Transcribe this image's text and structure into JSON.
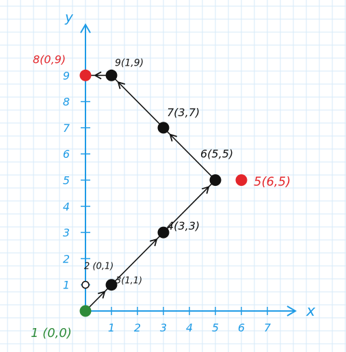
{
  "axes": {
    "x_label": "x",
    "y_label": "y",
    "x_ticks": [
      "1",
      "2",
      "3",
      "4",
      "5",
      "6",
      "7"
    ],
    "y_ticks": [
      "1",
      "2",
      "3",
      "4",
      "5",
      "6",
      "7",
      "8",
      "9"
    ]
  },
  "points": [
    {
      "id": "p1",
      "label": "1 (0,0)",
      "x": 0,
      "y": 0,
      "color": "#2e8b3a",
      "label_color": "#2e8b3a"
    },
    {
      "id": "p2",
      "label": "2 (0,1)",
      "x": 0,
      "y": 1,
      "color": "#ffffff",
      "label_color": "#111111"
    },
    {
      "id": "p3",
      "label": "3(1,1)",
      "x": 1,
      "y": 1,
      "color": "#111111",
      "label_color": "#111111"
    },
    {
      "id": "p4",
      "label": "4(3,3)",
      "x": 3,
      "y": 3,
      "color": "#111111",
      "label_color": "#111111"
    },
    {
      "id": "p5",
      "label": "5(6,5)",
      "x": 6,
      "y": 5,
      "color": "#e3262b",
      "label_color": "#e3262b"
    },
    {
      "id": "p6",
      "label": "6(5,5)",
      "x": 5,
      "y": 5,
      "color": "#111111",
      "label_color": "#111111"
    },
    {
      "id": "p7",
      "label": "7(3,7)",
      "x": 3,
      "y": 7,
      "color": "#111111",
      "label_color": "#111111"
    },
    {
      "id": "p8",
      "label": "8(0,9)",
      "x": 0,
      "y": 9,
      "color": "#e3262b",
      "label_color": "#e3262b"
    },
    {
      "id": "p9",
      "label": "9(1,9)",
      "x": 1,
      "y": 9,
      "color": "#111111",
      "label_color": "#111111"
    }
  ],
  "path": [
    "p1",
    "p3",
    "p4",
    "p6",
    "p7",
    "p9",
    "p8"
  ],
  "colors": {
    "grid": "#d6eaf8",
    "axis": "#1e9be6",
    "tick_label": "#1e9be6",
    "path_line": "#111111"
  }
}
